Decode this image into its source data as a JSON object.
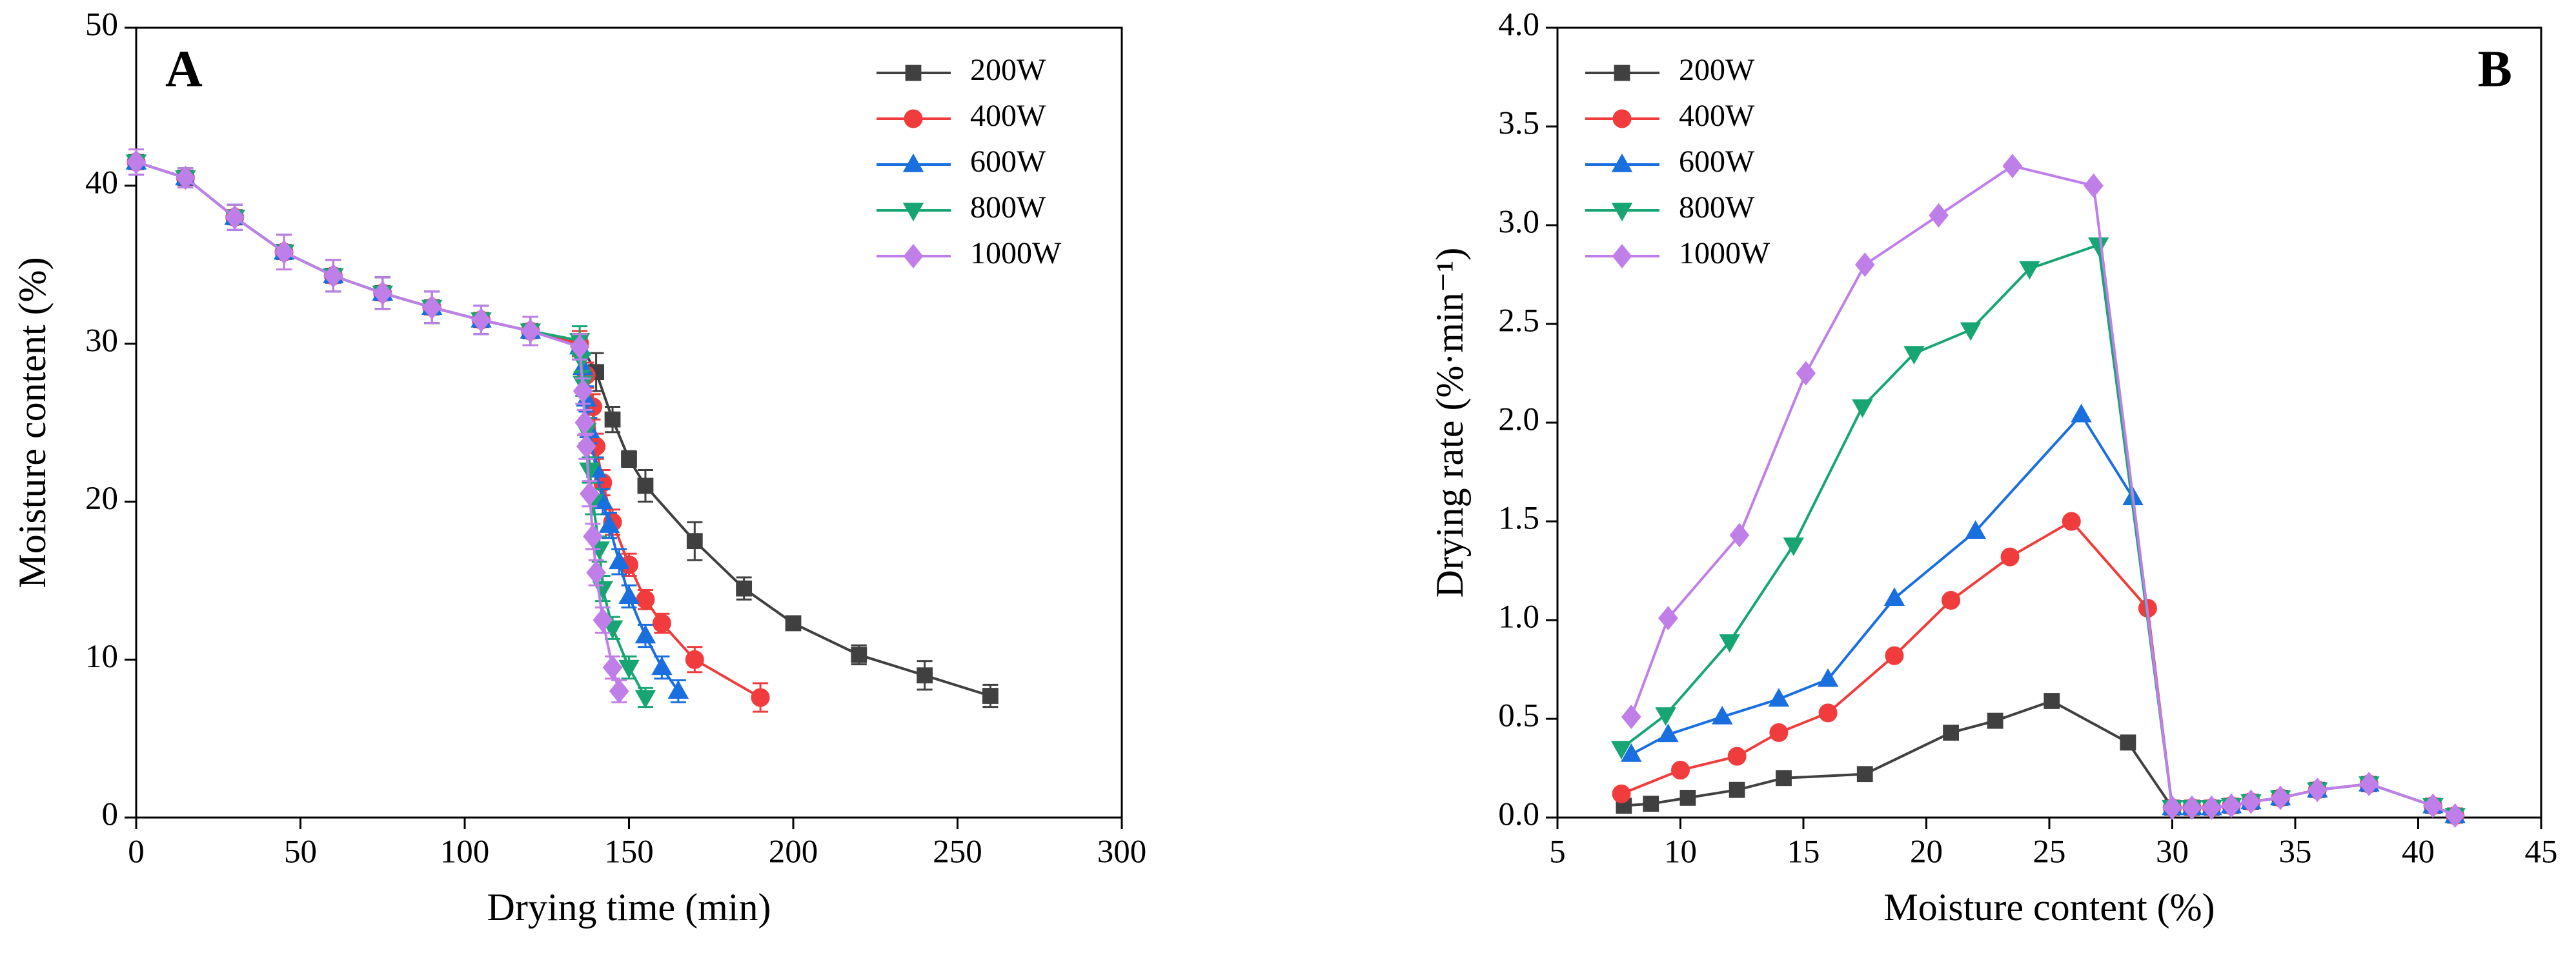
{
  "chart_data": [
    {
      "type": "line",
      "panel_label": "A",
      "xlabel": "Drying time (min)",
      "ylabel": "Moisture content (%)",
      "xlim": [
        0,
        300
      ],
      "xticks": [
        0,
        50,
        100,
        150,
        200,
        250,
        300
      ],
      "ylim": [
        0,
        50
      ],
      "yticks": [
        0,
        10,
        20,
        30,
        40,
        50
      ],
      "legend": "upper right",
      "error_bars": true,
      "series": [
        {
          "name": "200W",
          "color": "#404040",
          "marker": "square",
          "x": [
            0,
            15,
            30,
            45,
            60,
            75,
            90,
            105,
            120,
            135,
            140,
            145,
            150,
            155,
            170,
            185,
            200,
            220,
            240,
            260
          ],
          "values": [
            41.5,
            40.5,
            38,
            35.8,
            34.3,
            33.2,
            32.3,
            31.5,
            30.8,
            30,
            28.2,
            25.2,
            22.7,
            21,
            17.5,
            14.5,
            12.3,
            10.3,
            9,
            7.7
          ],
          "errors": [
            0.8,
            0.6,
            0.8,
            1.1,
            1.0,
            1.0,
            1.0,
            0.9,
            0.9,
            0.8,
            1.2,
            0.8,
            0.5,
            1.0,
            1.2,
            0.7,
            0.4,
            0.6,
            0.9,
            0.7
          ]
        },
        {
          "name": "400W",
          "color": "#f03c3c",
          "marker": "circle",
          "x": [
            0,
            15,
            30,
            45,
            60,
            75,
            90,
            105,
            120,
            135,
            137,
            139,
            140,
            142,
            145,
            150,
            155,
            160,
            170,
            190
          ],
          "values": [
            41.5,
            40.5,
            38,
            35.8,
            34.3,
            33.2,
            32.3,
            31.5,
            30.8,
            30,
            28,
            26,
            23.5,
            21.2,
            18.7,
            16,
            13.8,
            12.3,
            10,
            7.6
          ],
          "errors": [
            0.8,
            0.6,
            0.8,
            1.1,
            1.0,
            1.0,
            1.0,
            0.9,
            0.9,
            0.8,
            0.8,
            0.8,
            0.8,
            0.8,
            0.8,
            0.7,
            0.6,
            0.6,
            0.8,
            0.9
          ]
        },
        {
          "name": "600W",
          "color": "#1a6fdf",
          "marker": "triangle-up",
          "x": [
            0,
            15,
            30,
            45,
            60,
            75,
            90,
            105,
            120,
            135,
            136,
            137,
            138,
            140,
            142,
            144,
            147,
            150,
            155,
            160,
            165
          ],
          "values": [
            41.5,
            40.5,
            38,
            35.8,
            34.3,
            33.2,
            32.3,
            31.5,
            30.8,
            29.8,
            28.5,
            26.5,
            24.5,
            22,
            20,
            18.5,
            16.2,
            14,
            11.5,
            9.5,
            8
          ],
          "errors": [
            0.8,
            0.6,
            0.8,
            1.1,
            1.0,
            1.0,
            1.0,
            0.9,
            0.9,
            0.8,
            0.8,
            0.8,
            0.8,
            0.8,
            0.8,
            0.8,
            0.8,
            0.7,
            0.7,
            0.7,
            0.7
          ]
        },
        {
          "name": "800W",
          "color": "#17a673",
          "marker": "triangle-down",
          "x": [
            0,
            15,
            30,
            45,
            60,
            75,
            90,
            105,
            120,
            135,
            135.5,
            136,
            137,
            138,
            139,
            141,
            142,
            145,
            150,
            155
          ],
          "values": [
            41.5,
            40.5,
            38,
            35.8,
            34.3,
            33.2,
            32.3,
            31.5,
            30.8,
            30.2,
            29,
            27.5,
            24.5,
            22,
            20,
            17,
            14.5,
            12,
            9.5,
            7.6
          ],
          "errors": [
            0.8,
            0.6,
            0.8,
            1.1,
            1.0,
            1.0,
            1.0,
            0.9,
            0.9,
            0.9,
            0.8,
            0.8,
            0.8,
            0.8,
            0.8,
            0.8,
            0.8,
            0.7,
            0.7,
            0.6
          ]
        },
        {
          "name": "1000W",
          "color": "#c07fe8",
          "marker": "diamond",
          "x": [
            0,
            15,
            30,
            45,
            60,
            75,
            90,
            105,
            120,
            135,
            136,
            136.5,
            137,
            138,
            139,
            140,
            142,
            145,
            147
          ],
          "values": [
            41.5,
            40.5,
            38,
            35.8,
            34.3,
            33.2,
            32.3,
            31.5,
            30.8,
            29.8,
            27,
            25,
            23.5,
            20.5,
            17.8,
            15.5,
            12.5,
            9.5,
            8
          ],
          "errors": [
            0.8,
            0.6,
            0.8,
            1.1,
            1.0,
            1.0,
            1.0,
            0.9,
            0.9,
            0.8,
            0.8,
            0.8,
            0.8,
            0.8,
            0.8,
            0.8,
            0.8,
            0.7,
            0.7
          ]
        }
      ]
    },
    {
      "type": "line",
      "panel_label": "B",
      "xlabel": "Moisture content (%)",
      "ylabel": "Drying rate (%·min⁻¹)",
      "xlim": [
        5,
        45
      ],
      "xticks": [
        5,
        10,
        15,
        20,
        25,
        30,
        35,
        40,
        45
      ],
      "ylim": [
        0,
        4
      ],
      "yticks": [
        {
          "value": 0,
          "label": "0.0"
        },
        0.5,
        {
          "value": 1,
          "label": "1.0"
        },
        1.5,
        {
          "value": 2,
          "label": "2.0"
        },
        2.5,
        {
          "value": 3,
          "label": "3.0"
        },
        3.5,
        {
          "value": 4,
          "label": "4.0"
        }
      ],
      "legend": "upper left",
      "error_bars": false,
      "series": [
        {
          "name": "200W",
          "color": "#404040",
          "marker": "square",
          "x": [
            7.7,
            8.8,
            10.3,
            12.3,
            14.2,
            17.5,
            21,
            22.8,
            25.1,
            28.2,
            30,
            30.8,
            31.6,
            32.4,
            33.2,
            34.4,
            35.9,
            38,
            40.6,
            41.5
          ],
          "values": [
            0.06,
            0.07,
            0.1,
            0.14,
            0.2,
            0.22,
            0.43,
            0.49,
            0.59,
            0.38,
            0.05,
            0.05,
            0.05,
            0.06,
            0.08,
            0.1,
            0.14,
            0.17,
            0.06,
            0.01
          ]
        },
        {
          "name": "400W",
          "color": "#f03c3c",
          "marker": "circle",
          "x": [
            7.6,
            10,
            12.3,
            14,
            16,
            18.7,
            21,
            23.4,
            25.9,
            29,
            30,
            30.8,
            31.6,
            32.4,
            33.2,
            34.4,
            35.9,
            38,
            40.6,
            41.5
          ],
          "values": [
            0.12,
            0.24,
            0.31,
            0.43,
            0.53,
            0.82,
            1.1,
            1.32,
            1.5,
            1.06,
            0.05,
            0.05,
            0.05,
            0.06,
            0.08,
            0.1,
            0.14,
            0.17,
            0.06,
            0.01
          ]
        },
        {
          "name": "600W",
          "color": "#1a6fdf",
          "marker": "triangle-up",
          "x": [
            8,
            9.5,
            11.7,
            14,
            16,
            18.7,
            22,
            26.3,
            28.4,
            30,
            30.8,
            31.6,
            32.4,
            33.2,
            34.4,
            35.9,
            38,
            40.6,
            41.5
          ],
          "values": [
            0.32,
            0.42,
            0.51,
            0.6,
            0.7,
            1.11,
            1.45,
            2.04,
            1.62,
            0.05,
            0.05,
            0.05,
            0.06,
            0.08,
            0.1,
            0.14,
            0.17,
            0.06,
            0.01
          ]
        },
        {
          "name": "800W",
          "color": "#17a673",
          "marker": "triangle-down",
          "x": [
            7.6,
            9.4,
            12,
            14.6,
            17.4,
            19.5,
            21.8,
            24.2,
            27,
            30,
            30.8,
            31.6,
            32.4,
            33.2,
            34.4,
            35.9,
            38,
            40.6,
            41.5
          ],
          "values": [
            0.35,
            0.52,
            0.89,
            1.38,
            2.08,
            2.35,
            2.47,
            2.78,
            2.9,
            0.05,
            0.05,
            0.05,
            0.06,
            0.08,
            0.1,
            0.14,
            0.17,
            0.06,
            0.01
          ]
        },
        {
          "name": "1000W",
          "color": "#c07fe8",
          "marker": "diamond",
          "x": [
            8,
            9.5,
            12.4,
            15.1,
            17.5,
            20.5,
            23.5,
            26.8,
            30,
            30.8,
            31.6,
            32.4,
            33.2,
            34.4,
            35.9,
            38,
            40.6,
            41.5
          ],
          "values": [
            0.51,
            1.01,
            1.43,
            2.25,
            2.8,
            3.05,
            3.3,
            3.2,
            0.05,
            0.05,
            0.05,
            0.06,
            0.08,
            0.1,
            0.14,
            0.17,
            0.06,
            0.01
          ]
        }
      ]
    }
  ]
}
